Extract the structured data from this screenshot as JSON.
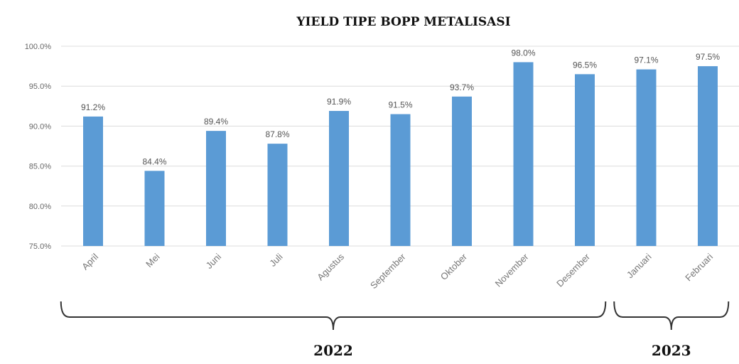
{
  "chart_data": {
    "type": "bar",
    "title": "YIELD TIPE BOPP METALISASI",
    "xlabel": "",
    "ylabel": "",
    "ylim": [
      75.0,
      100.0
    ],
    "yticks": [
      "75.0%",
      "80.0%",
      "85.0%",
      "90.0%",
      "95.0%",
      "100.0%"
    ],
    "ytick_values": [
      75,
      80,
      85,
      90,
      95,
      100
    ],
    "categories": [
      "April",
      "Mei",
      "Juni",
      "Juli",
      "Agustus",
      "September",
      "Oktober",
      "November",
      "Desember",
      "Januari",
      "Februari"
    ],
    "values": [
      91.2,
      84.4,
      89.4,
      87.8,
      91.9,
      91.5,
      93.7,
      98.0,
      96.5,
      97.1,
      97.5
    ],
    "value_labels": [
      "91.2%",
      "84.4%",
      "89.4%",
      "87.8%",
      "91.9%",
      "91.5%",
      "93.7%",
      "98.0%",
      "96.5%",
      "97.1%",
      "97.5%"
    ],
    "bar_color": "#5b9bd5",
    "grid": true,
    "groups": [
      {
        "label": "2022",
        "start_index": 0,
        "end_index": 8
      },
      {
        "label": "2023",
        "start_index": 9,
        "end_index": 10
      }
    ]
  }
}
